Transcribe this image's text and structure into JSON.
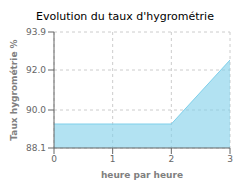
{
  "chart_data": {
    "type": "area",
    "title": "Evolution du taux d'hygrométrie",
    "xlabel": "heure par heure",
    "ylabel": "Taux hygrométrie %",
    "x": [
      0,
      1,
      2,
      3
    ],
    "values": [
      89.3,
      89.3,
      89.3,
      92.5
    ],
    "color": "#7ecfea",
    "xlim": [
      0,
      3
    ],
    "xticks": [
      0,
      1,
      2,
      3
    ],
    "ylim": [
      88.1,
      93.9
    ],
    "yticks": [
      88.1,
      {
        "value": 90.0,
        "label": "90.0"
      },
      {
        "value": 92.0,
        "label": "92.0"
      },
      93.9
    ],
    "grid": true
  }
}
